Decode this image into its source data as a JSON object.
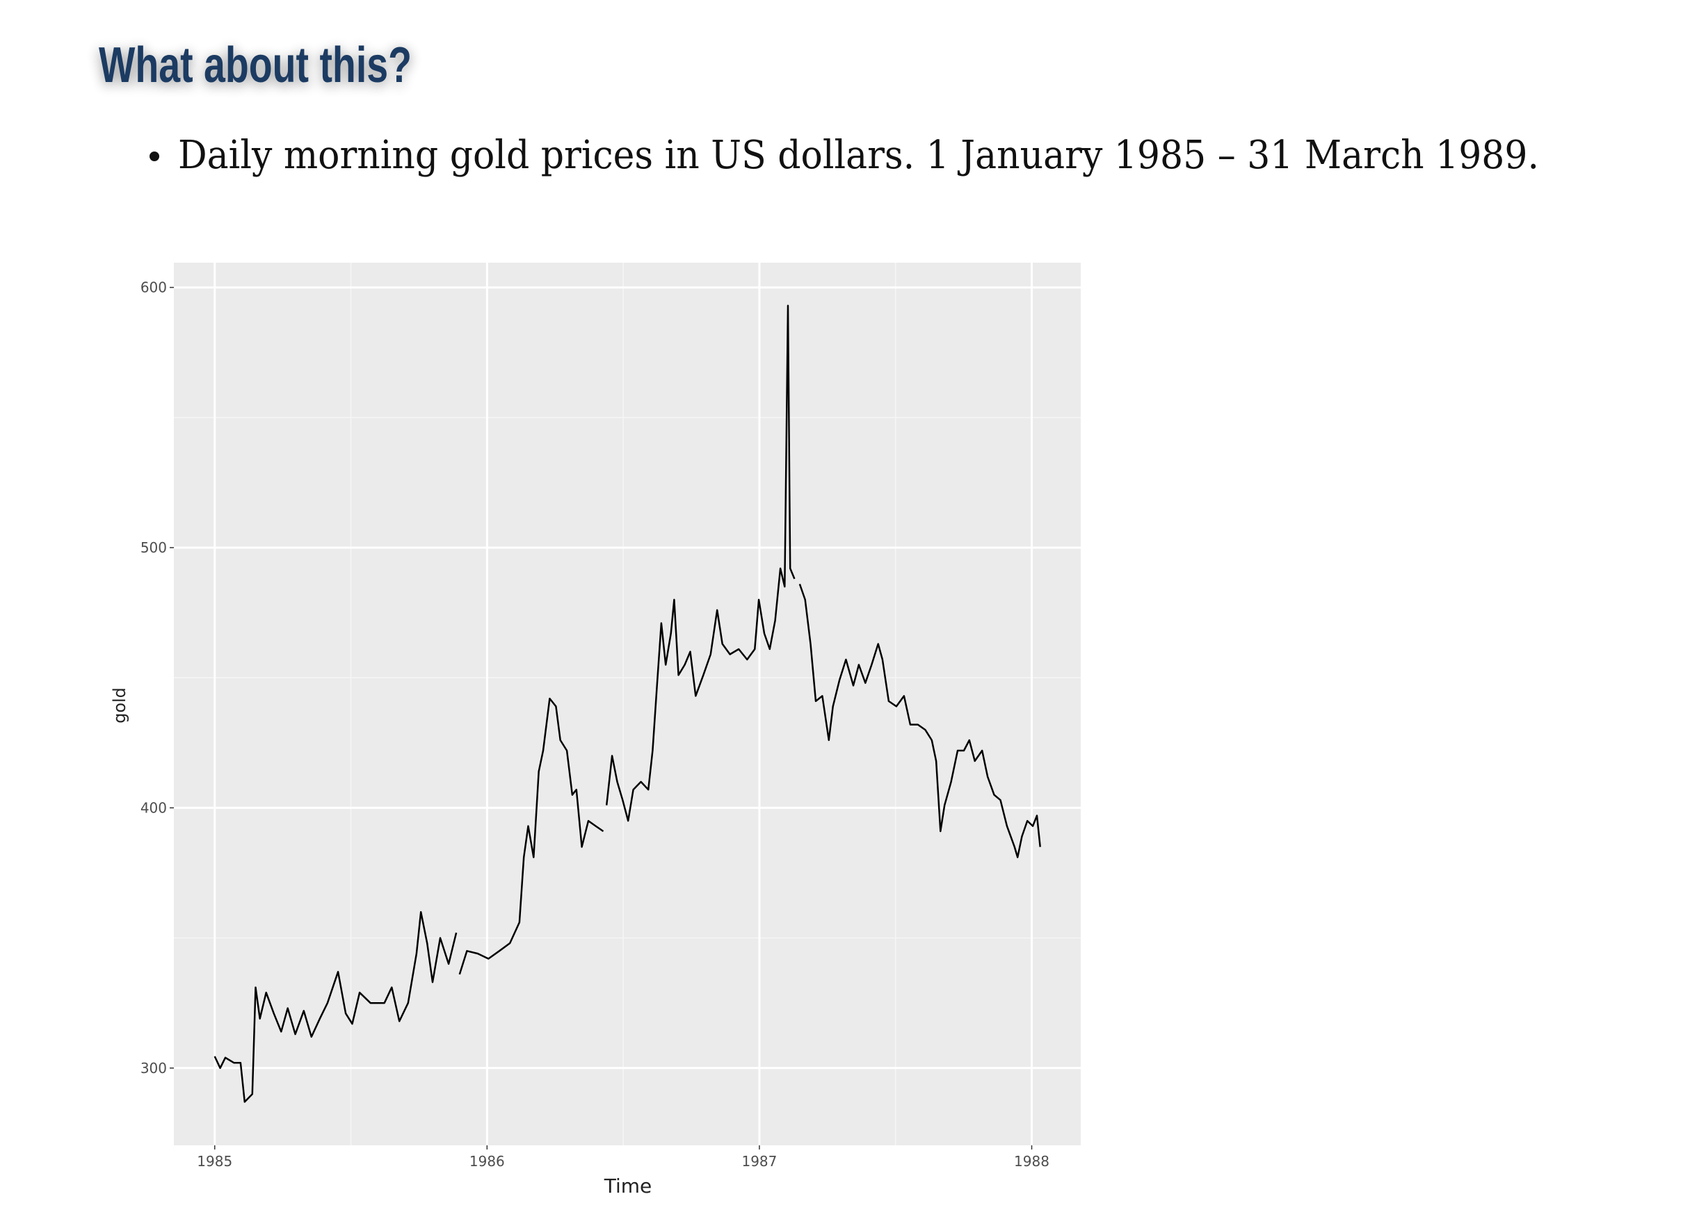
{
  "header": {
    "title": "What about this?"
  },
  "bullets": [
    "Daily morning gold prices in US dollars. 1 January 1985 – 31 March 1989."
  ],
  "chart_data": {
    "type": "line",
    "xlabel": "Time",
    "ylabel": "gold",
    "color": "#000000",
    "grid": true,
    "xlim": [
      1984.85,
      1988.18
    ],
    "ylim": [
      270.3,
      609.5
    ],
    "xticks": [
      1985,
      1986,
      1987,
      1988
    ],
    "yticks": [
      300,
      400,
      500,
      600
    ],
    "x": [
      1985.0,
      1985.02,
      1985.039,
      1985.071,
      1985.095,
      1985.11,
      1985.138,
      1985.15,
      1985.166,
      1985.189,
      1985.217,
      1985.244,
      1985.268,
      1985.296,
      1985.327,
      1985.355,
      1985.386,
      1985.414,
      1985.453,
      1985.481,
      1985.505,
      1985.532,
      1985.572,
      1985.623,
      1985.65,
      1985.678,
      1985.71,
      1985.741,
      1985.757,
      1985.78,
      1985.8,
      1985.828,
      1985.859,
      1985.887,
      1985.893,
      1985.899,
      1985.926,
      1985.966,
      1986.005,
      1986.045,
      1986.084,
      1986.119,
      1986.135,
      1986.151,
      1986.171,
      1986.19,
      1986.206,
      1986.23,
      1986.253,
      1986.269,
      1986.293,
      1986.313,
      1986.328,
      1986.348,
      1986.372,
      1986.399,
      1986.427,
      1986.433,
      1986.439,
      1986.459,
      1986.478,
      1986.498,
      1986.518,
      1986.537,
      1986.565,
      1986.592,
      1986.608,
      1986.624,
      1986.64,
      1986.656,
      1986.675,
      1986.687,
      1986.703,
      1986.726,
      1986.746,
      1986.766,
      1986.794,
      1986.821,
      1986.845,
      1986.864,
      1986.892,
      1986.924,
      1986.955,
      1986.983,
      1986.998,
      1987.018,
      1987.038,
      1987.058,
      1987.077,
      1987.093,
      1987.105,
      1987.113,
      1987.129,
      1987.135,
      1987.148,
      1987.168,
      1987.188,
      1987.207,
      1987.231,
      1987.255,
      1987.27,
      1987.294,
      1987.318,
      1987.345,
      1987.365,
      1987.389,
      1987.412,
      1987.436,
      1987.452,
      1987.475,
      1987.503,
      1987.531,
      1987.554,
      1987.582,
      1987.609,
      1987.633,
      1987.649,
      1987.665,
      1987.68,
      1987.704,
      1987.728,
      1987.751,
      1987.771,
      1987.791,
      1987.818,
      1987.838,
      1987.862,
      1987.885,
      1987.909,
      1987.937,
      1987.948,
      1987.964,
      1987.984,
      1988.004,
      1988.019,
      1988.031
    ],
    "values": [
      304.5,
      300,
      304,
      302,
      302,
      287,
      290,
      331,
      319,
      329,
      321,
      314,
      323,
      313,
      322,
      312,
      319,
      325,
      337,
      321,
      317,
      329,
      325,
      325,
      331,
      318,
      325,
      344,
      360,
      348,
      333,
      350,
      340,
      352,
      null,
      336,
      345,
      344,
      342,
      345,
      348,
      356,
      381,
      393,
      381,
      414,
      422,
      442,
      439,
      426,
      422,
      405,
      407,
      385,
      395,
      393,
      391,
      null,
      401,
      420,
      410,
      403,
      395,
      407,
      410,
      407,
      422,
      447,
      471,
      455,
      467,
      480,
      451,
      455,
      460,
      443,
      451,
      459,
      476,
      463,
      459,
      461,
      457,
      461,
      480,
      467,
      461,
      472,
      492,
      485,
      593,
      492,
      488,
      null,
      486,
      480,
      463,
      441,
      443,
      426,
      439,
      449,
      457,
      447,
      455,
      448,
      455,
      463,
      457,
      441,
      439,
      443,
      432,
      432,
      430,
      426,
      418,
      391,
      401,
      410,
      422,
      422,
      426,
      418,
      422,
      412,
      405,
      403,
      393,
      385,
      381,
      389,
      395,
      393,
      397,
      385
    ]
  }
}
